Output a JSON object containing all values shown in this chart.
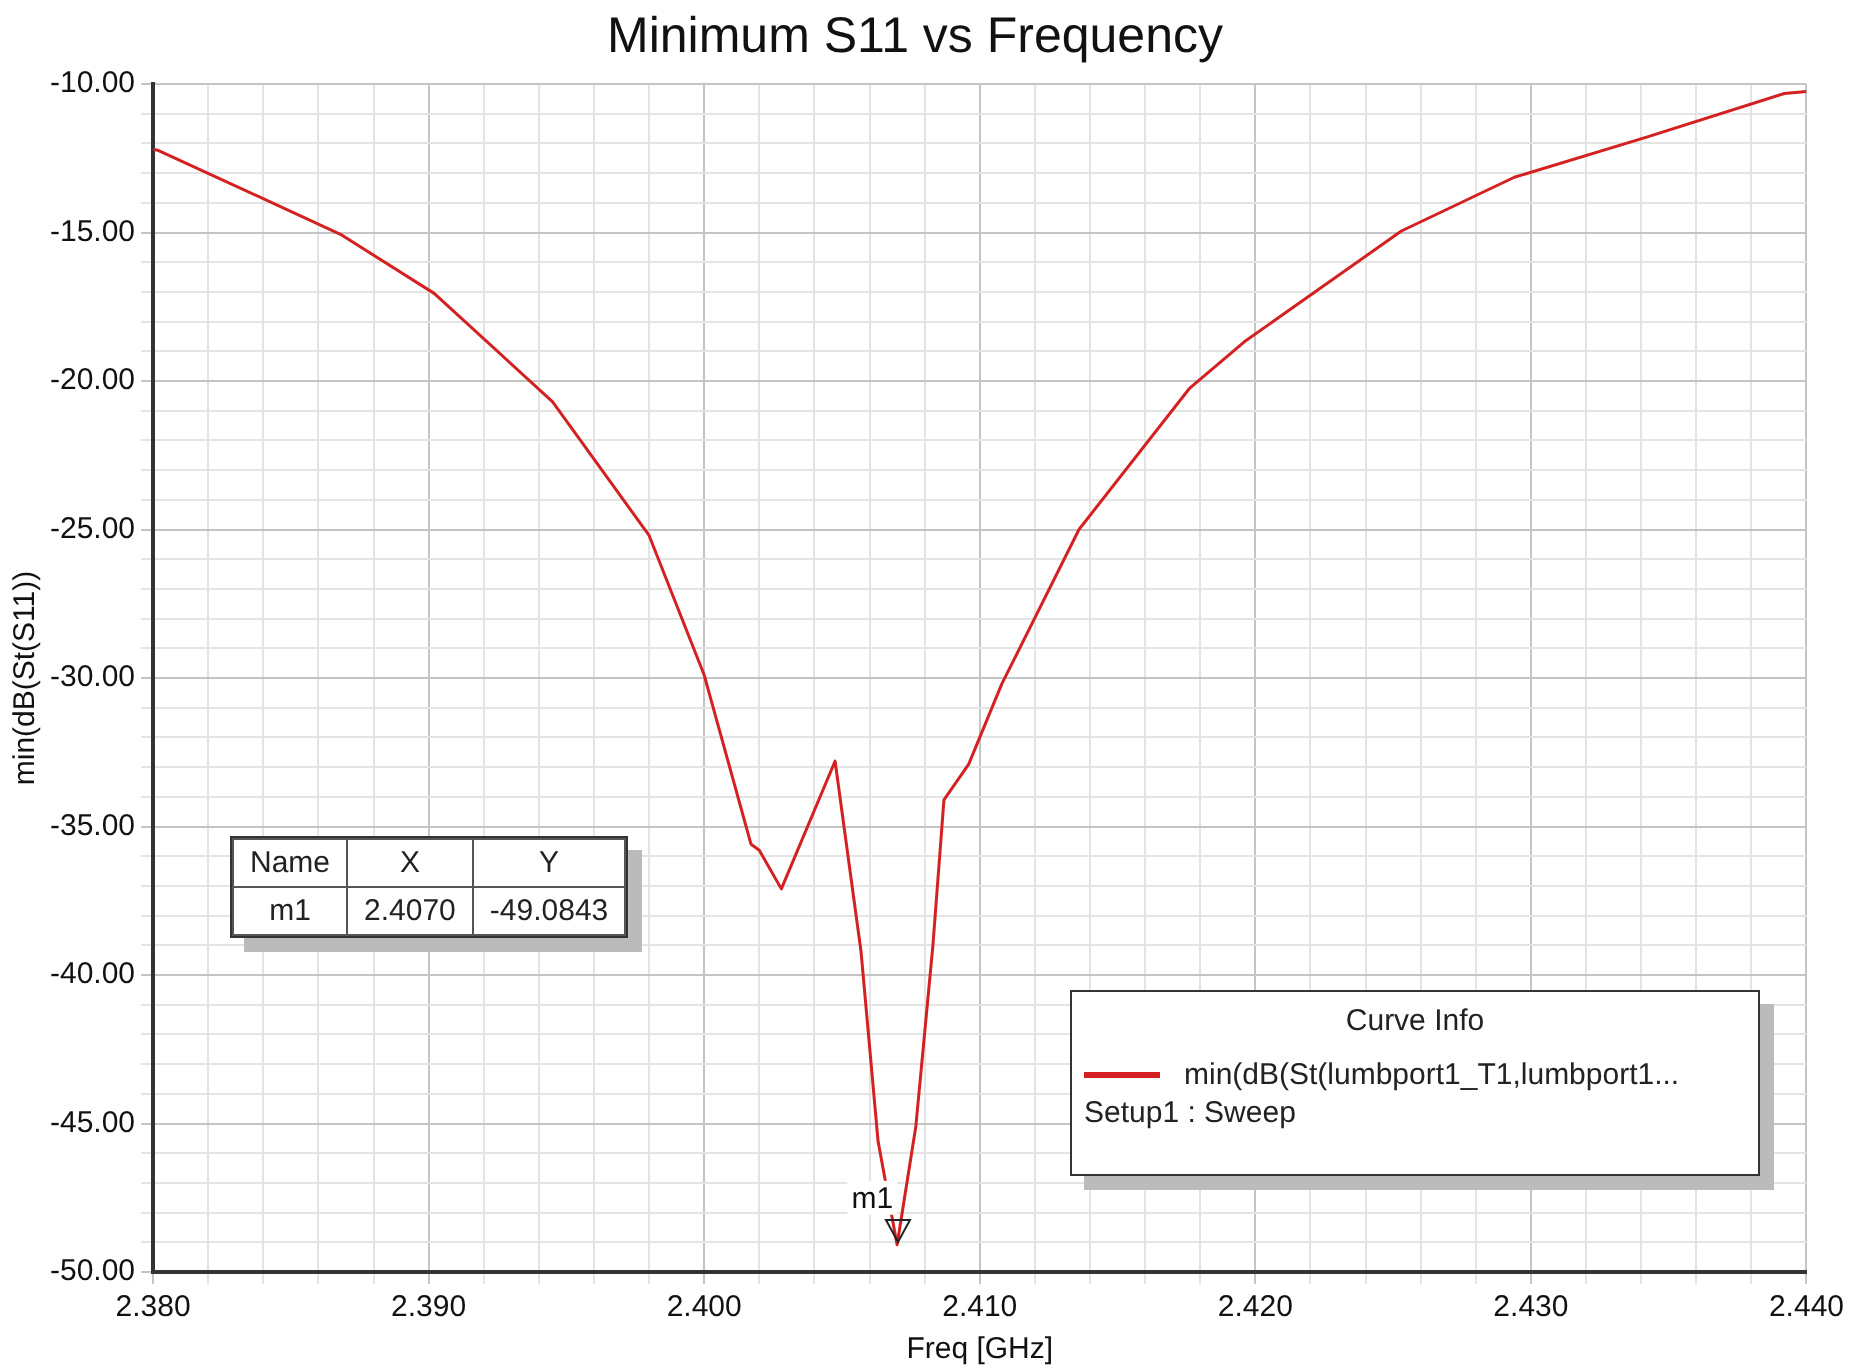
{
  "chart_data": {
    "type": "line",
    "title": "Minimum S11 vs Frequency",
    "xlabel": "Freq [GHz]",
    "ylabel": "min(dB(St(S11))",
    "legend_title": "Curve Info",
    "annotations": [
      {
        "text": "m1",
        "x": 2.407,
        "y": -49.0843
      },
      "Name",
      "X",
      "Y",
      "m1",
      "2.4070",
      "-49.0843",
      "Setup1 : Sweep"
    ],
    "x": [
      2.38,
      2.3802,
      2.3868,
      2.3902,
      2.3945,
      2.398,
      2.4,
      2.4017,
      2.402,
      2.4028,
      2.40475,
      2.40569,
      2.40631,
      2.407,
      2.40768,
      2.4083,
      2.4087,
      2.4096,
      2.4108,
      2.4136,
      2.4176,
      2.4196,
      2.4253,
      2.4294,
      2.4342,
      2.4392,
      2.44
    ],
    "series": [
      {
        "name": "min(dB(St(lumbport1_T1,lumbport1...",
        "color": "#d42020",
        "values": [
          -12.2,
          -12.24,
          -15.06,
          -17.05,
          -20.7,
          -25.2,
          -29.9,
          -35.6,
          -35.8,
          -37.1,
          -32.8,
          -39.2,
          -45.6,
          -49.0843,
          -45.1,
          -39.0,
          -34.1,
          -32.9,
          -30.2,
          -25.0,
          -20.26,
          -18.68,
          -14.95,
          -13.14,
          -11.79,
          -10.32,
          -10.25
        ]
      }
    ],
    "xlim": [
      2.38,
      2.44
    ],
    "xticks": [
      {
        "value": 2.38,
        "label": "2.380"
      },
      {
        "value": 2.382,
        "label": null
      },
      {
        "value": 2.384,
        "label": null
      },
      {
        "value": 2.386,
        "label": null
      },
      {
        "value": 2.388,
        "label": null
      },
      {
        "value": 2.39,
        "label": "2.390"
      },
      {
        "value": 2.392,
        "label": null
      },
      {
        "value": 2.394,
        "label": null
      },
      {
        "value": 2.396,
        "label": null
      },
      {
        "value": 2.398,
        "label": null
      },
      {
        "value": 2.4,
        "label": "2.400"
      },
      {
        "value": 2.402,
        "label": null
      },
      {
        "value": 2.404,
        "label": null
      },
      {
        "value": 2.406,
        "label": null
      },
      {
        "value": 2.408,
        "label": null
      },
      {
        "value": 2.41,
        "label": "2.410"
      },
      {
        "value": 2.412,
        "label": null
      },
      {
        "value": 2.414,
        "label": null
      },
      {
        "value": 2.416,
        "label": null
      },
      {
        "value": 2.418,
        "label": null
      },
      {
        "value": 2.42,
        "label": "2.420"
      },
      {
        "value": 2.422,
        "label": null
      },
      {
        "value": 2.424,
        "label": null
      },
      {
        "value": 2.426,
        "label": null
      },
      {
        "value": 2.428,
        "label": null
      },
      {
        "value": 2.43,
        "label": "2.430"
      },
      {
        "value": 2.432,
        "label": null
      },
      {
        "value": 2.434,
        "label": null
      },
      {
        "value": 2.436,
        "label": null
      },
      {
        "value": 2.438,
        "label": null
      },
      {
        "value": 2.44,
        "label": "2.440"
      }
    ],
    "ylim": [
      -50,
      -10
    ],
    "yticks": [
      {
        "value": -50,
        "label": "-50.00"
      },
      {
        "value": -49,
        "label": null
      },
      {
        "value": -48,
        "label": null
      },
      {
        "value": -47,
        "label": null
      },
      {
        "value": -46,
        "label": null
      },
      {
        "value": -45,
        "label": "-45.00"
      },
      {
        "value": -44,
        "label": null
      },
      {
        "value": -43,
        "label": null
      },
      {
        "value": -42,
        "label": null
      },
      {
        "value": -41,
        "label": null
      },
      {
        "value": -40,
        "label": "-40.00"
      },
      {
        "value": -39,
        "label": null
      },
      {
        "value": -38,
        "label": null
      },
      {
        "value": -37,
        "label": null
      },
      {
        "value": -36,
        "label": null
      },
      {
        "value": -35,
        "label": "-35.00"
      },
      {
        "value": -34,
        "label": null
      },
      {
        "value": -33,
        "label": null
      },
      {
        "value": -32,
        "label": null
      },
      {
        "value": -31,
        "label": null
      },
      {
        "value": -30,
        "label": "-30.00"
      },
      {
        "value": -29,
        "label": null
      },
      {
        "value": -28,
        "label": null
      },
      {
        "value": -27,
        "label": null
      },
      {
        "value": -26,
        "label": null
      },
      {
        "value": -25,
        "label": "-25.00"
      },
      {
        "value": -24,
        "label": null
      },
      {
        "value": -23,
        "label": null
      },
      {
        "value": -22,
        "label": null
      },
      {
        "value": -21,
        "label": null
      },
      {
        "value": -20,
        "label": "-20.00"
      },
      {
        "value": -19,
        "label": null
      },
      {
        "value": -18,
        "label": null
      },
      {
        "value": -17,
        "label": null
      },
      {
        "value": -16,
        "label": null
      },
      {
        "value": -15,
        "label": "-15.00"
      },
      {
        "value": -14,
        "label": null
      },
      {
        "value": -13,
        "label": null
      },
      {
        "value": -12,
        "label": null
      },
      {
        "value": -11,
        "label": null
      },
      {
        "value": -10,
        "label": "-10.00"
      }
    ],
    "grid": true,
    "legend": "bottom right",
    "marker": "none",
    "line_style": "solid"
  }
}
